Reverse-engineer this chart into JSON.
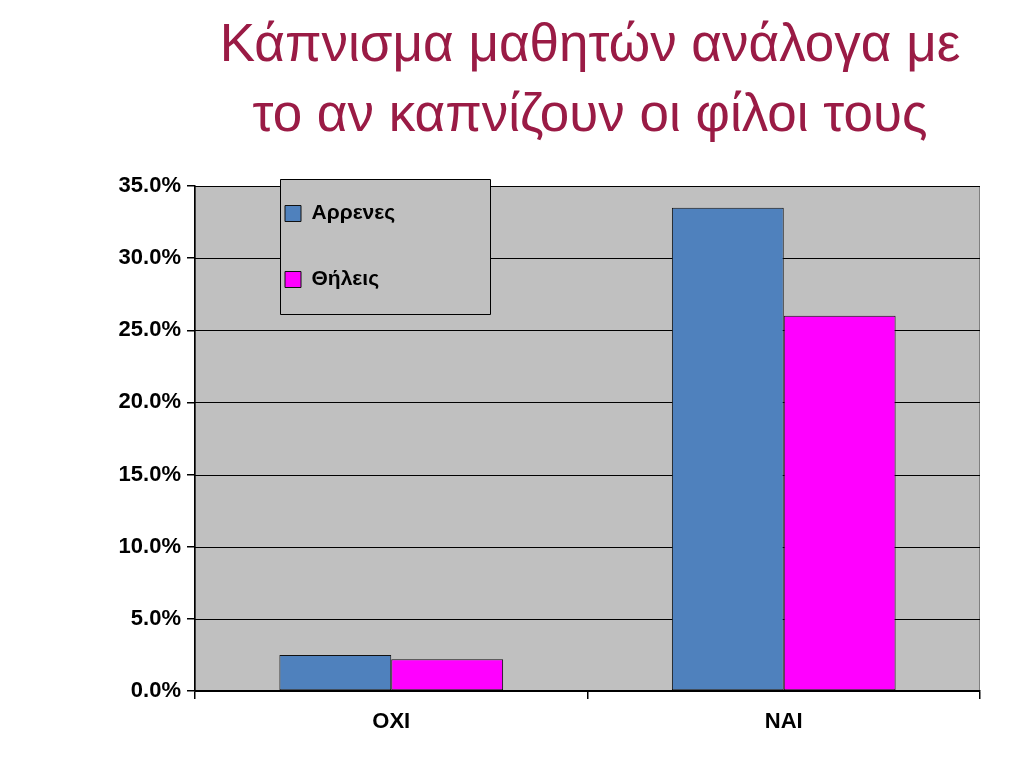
{
  "chart_data": {
    "type": "bar",
    "title": "Κάπνισμα μαθητών ανάλογα με το αν καπνίζουν οι φίλοι τους",
    "categories": [
      "ΟΧΙ",
      "ΝΑΙ"
    ],
    "series": [
      {
        "name": "Αρρενες",
        "color": "#4f81bd",
        "values": [
          2.5,
          33.5
        ]
      },
      {
        "name": "Θήλεις",
        "color": "#ff00ff",
        "values": [
          2.2,
          26.0
        ]
      }
    ],
    "ylim": [
      0,
      35
    ],
    "yticks": [
      {
        "value": 0,
        "label": "0.0%"
      },
      {
        "value": 5,
        "label": "5.0%"
      },
      {
        "value": 10,
        "label": "10.0%"
      },
      {
        "value": 15,
        "label": "15.0%"
      },
      {
        "value": 20,
        "label": "20.0%"
      },
      {
        "value": 25,
        "label": "25.0%"
      },
      {
        "value": 30,
        "label": "30.0%"
      },
      {
        "value": 35,
        "label": "35.0%"
      }
    ],
    "grid": "y",
    "legend": "top left"
  }
}
